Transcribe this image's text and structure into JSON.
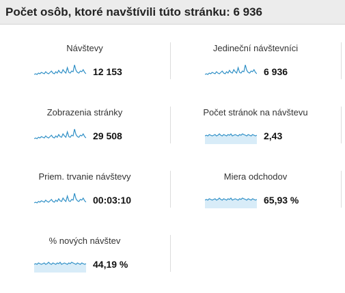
{
  "header": {
    "title": "Počet osôb, ktoré navštívili túto stránku: 6 936"
  },
  "colors": {
    "header_bg": "#ececec",
    "sparkline_line": "#2e8fc6",
    "sparkline_fill": "#d8ecf8",
    "divider": "#dcdcdc"
  },
  "metrics": [
    {
      "label": "Návštevy",
      "value": "12 153",
      "spark_type": "spiky"
    },
    {
      "label": "Jedineční návštevníci",
      "value": "6 936",
      "spark_type": "spiky"
    },
    {
      "label": "Zobrazenia stránky",
      "value": "29 508",
      "spark_type": "spiky"
    },
    {
      "label": "Počet stránok na návštevu",
      "value": "2,43",
      "spark_type": "flat"
    },
    {
      "label": "Priem. trvanie návštevy",
      "value": "00:03:10",
      "spark_type": "spiky"
    },
    {
      "label": "Miera odchodov",
      "value": "65,93 %",
      "spark_type": "flat"
    },
    {
      "label": "% nových návštev",
      "value": "44,19 %",
      "spark_type": "flat"
    }
  ]
}
